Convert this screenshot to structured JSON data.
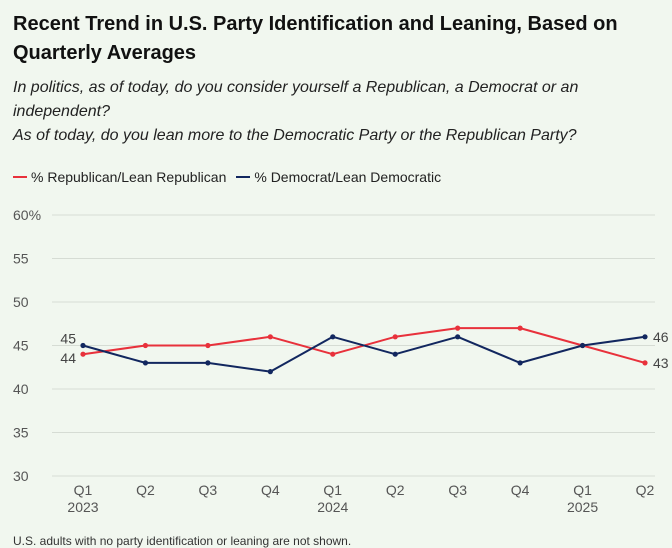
{
  "title": "Recent Trend in U.S. Party Identification and Leaning, Based on Quarterly Averages",
  "subtitle_lines": [
    "In politics, as of today, do you consider yourself a Republican, a Democrat or an",
    "independent?",
    "As of today, do you lean more to the Democratic Party or the Republican Party?"
  ],
  "footnote": "U.S. adults with no party identification or leaning are not shown.",
  "chart_data": {
    "type": "line",
    "title": "Recent Trend in U.S. Party Identification and Leaning, Based on Quarterly Averages",
    "xlabel": "",
    "ylabel": "",
    "categories": [
      "Q1",
      "Q2",
      "Q3",
      "Q4",
      "Q1",
      "Q2",
      "Q3",
      "Q4",
      "Q1",
      "Q2"
    ],
    "year_labels": [
      "2023",
      "",
      "",
      "",
      "2024",
      "",
      "",
      "",
      "2025",
      ""
    ],
    "ylim": [
      30,
      60
    ],
    "yticks": [
      30,
      35,
      40,
      45,
      50,
      55,
      60
    ],
    "ytick_labels": [
      "30",
      "35",
      "40",
      "45",
      "50",
      "55",
      "60%"
    ],
    "grid": true,
    "legend_position": "top-left",
    "series": [
      {
        "name": "% Republican/Lean Republican",
        "color": "#e8313b",
        "values": [
          44,
          45,
          45,
          46,
          44,
          46,
          47,
          47,
          45,
          43
        ],
        "start_label": "44",
        "end_label": "43"
      },
      {
        "name": "% Democrat/Lean Democratic",
        "color": "#12275f",
        "values": [
          45,
          43,
          43,
          42,
          46,
          44,
          46,
          43,
          45,
          46
        ],
        "start_label": "45",
        "end_label": "46"
      }
    ]
  }
}
